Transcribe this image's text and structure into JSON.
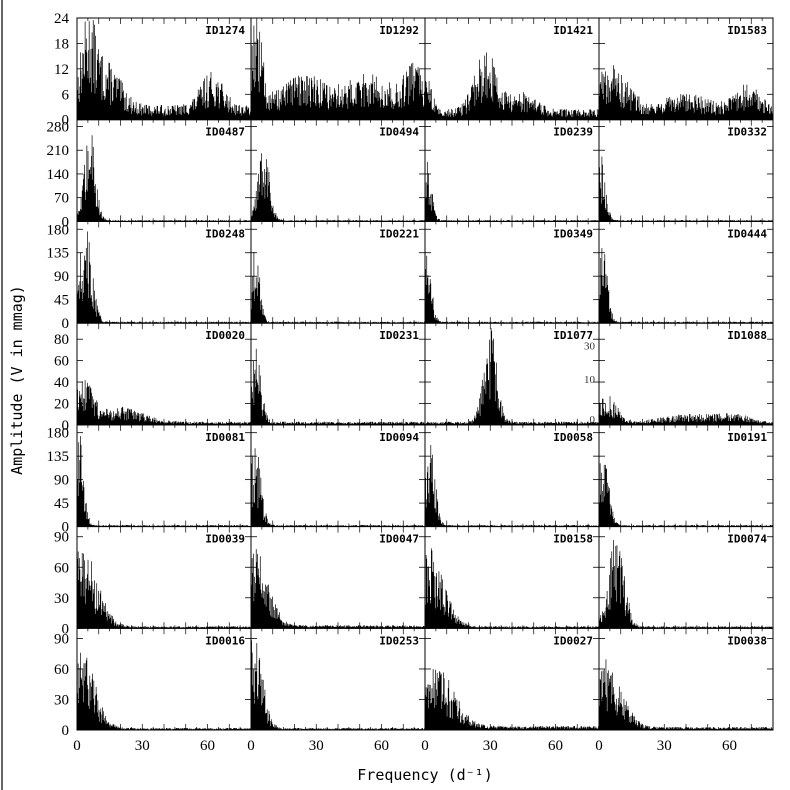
{
  "chart_data": {
    "type": "line",
    "xlabel": "Frequency (d⁻¹)",
    "ylabel": "Amplitude (V in mmag)",
    "xlim": [
      0,
      80
    ],
    "x_ticks": [
      0,
      30,
      60
    ],
    "rows": [
      {
        "y_ticks": [
          0,
          6,
          12,
          18,
          24
        ],
        "ylim": [
          0,
          24
        ]
      },
      {
        "y_ticks": [
          0,
          70,
          140,
          210,
          280
        ],
        "ylim": [
          0,
          300
        ]
      },
      {
        "y_ticks": [
          0,
          45,
          90,
          135,
          180
        ],
        "ylim": [
          0,
          195
        ]
      },
      {
        "y_ticks": [
          0,
          20,
          40,
          60,
          80
        ],
        "ylim": [
          0,
          95
        ]
      },
      {
        "y_ticks": [
          0,
          45,
          90,
          135,
          180
        ],
        "ylim": [
          0,
          195
        ]
      },
      {
        "y_ticks": [
          0,
          30,
          60,
          90
        ],
        "ylim": [
          0,
          100
        ]
      },
      {
        "y_ticks": [
          0,
          30,
          60,
          90
        ],
        "ylim": [
          0,
          100
        ]
      }
    ],
    "panels": [
      {
        "label": "ID1274",
        "row": 0,
        "col": 0,
        "peaks": [
          [
            5,
            19,
            3.5
          ],
          [
            14,
            10,
            6
          ],
          [
            62,
            8,
            5
          ]
        ],
        "base": 3.5
      },
      {
        "label": "ID1292",
        "row": 0,
        "col": 1,
        "peaks": [
          [
            2,
            21,
            3
          ],
          [
            25,
            7,
            10
          ],
          [
            55,
            7,
            10
          ],
          [
            75,
            9,
            4
          ]
        ],
        "base": 4
      },
      {
        "label": "ID1421",
        "row": 0,
        "col": 2,
        "peaks": [
          [
            1,
            10,
            2
          ],
          [
            28,
            14,
            5
          ],
          [
            45,
            4,
            6
          ]
        ],
        "base": 2.5
      },
      {
        "label": "ID1583",
        "row": 0,
        "col": 3,
        "peaks": [
          [
            5,
            11,
            8
          ],
          [
            40,
            4,
            10
          ],
          [
            68,
            6,
            6
          ]
        ],
        "base": 2.5
      },
      {
        "label": "ID0487",
        "row": 1,
        "col": 0,
        "peaks": [
          [
            6,
            280,
            2.5
          ]
        ],
        "base": 4
      },
      {
        "label": "ID0494",
        "row": 1,
        "col": 1,
        "peaks": [
          [
            6,
            250,
            2.5
          ]
        ],
        "base": 4
      },
      {
        "label": "ID0239",
        "row": 1,
        "col": 2,
        "peaks": [
          [
            1,
            190,
            2
          ]
        ],
        "base": 4
      },
      {
        "label": "ID0332",
        "row": 1,
        "col": 3,
        "peaks": [
          [
            1,
            200,
            2
          ]
        ],
        "base": 4
      },
      {
        "label": "ID0248",
        "row": 2,
        "col": 0,
        "peaks": [
          [
            5,
            160,
            2.5
          ],
          [
            1,
            80,
            2
          ]
        ],
        "base": 3
      },
      {
        "label": "ID0221",
        "row": 2,
        "col": 1,
        "peaks": [
          [
            2,
            145,
            2
          ]
        ],
        "base": 3
      },
      {
        "label": "ID0349",
        "row": 2,
        "col": 2,
        "peaks": [
          [
            1,
            150,
            2
          ]
        ],
        "base": 3
      },
      {
        "label": "ID0444",
        "row": 2,
        "col": 3,
        "peaks": [
          [
            2,
            150,
            2
          ]
        ],
        "base": 3
      },
      {
        "label": "ID0020",
        "row": 3,
        "col": 0,
        "peaks": [
          [
            3,
            40,
            4
          ],
          [
            20,
            14,
            10
          ]
        ],
        "base": 3
      },
      {
        "label": "ID0231",
        "row": 3,
        "col": 1,
        "peaks": [
          [
            2,
            70,
            2.5
          ]
        ],
        "base": 3
      },
      {
        "label": "ID1077",
        "row": 3,
        "col": 2,
        "peaks": [
          [
            30,
            92,
            3
          ]
        ],
        "base": 3
      },
      {
        "label": "ID1088",
        "row": 3,
        "col": 3,
        "peaks": [
          [
            3,
            28,
            5
          ],
          [
            40,
            8,
            12
          ],
          [
            62,
            8,
            8
          ]
        ],
        "base": 2
      },
      {
        "label": "ID0081",
        "row": 4,
        "col": 0,
        "peaks": [
          [
            1,
            190,
            2
          ]
        ],
        "base": 3
      },
      {
        "label": "ID0094",
        "row": 4,
        "col": 1,
        "peaks": [
          [
            2,
            155,
            2.5
          ]
        ],
        "base": 3
      },
      {
        "label": "ID0058",
        "row": 4,
        "col": 2,
        "peaks": [
          [
            2,
            170,
            2.5
          ]
        ],
        "base": 3
      },
      {
        "label": "ID0191",
        "row": 4,
        "col": 3,
        "peaks": [
          [
            2,
            145,
            2.5
          ]
        ],
        "base": 3
      },
      {
        "label": "ID0039",
        "row": 5,
        "col": 0,
        "peaks": [
          [
            2,
            80,
            7
          ]
        ],
        "base": 2
      },
      {
        "label": "ID0047",
        "row": 5,
        "col": 1,
        "peaks": [
          [
            2,
            75,
            6
          ]
        ],
        "base": 3
      },
      {
        "label": "ID0158",
        "row": 5,
        "col": 2,
        "peaks": [
          [
            1,
            80,
            7
          ]
        ],
        "base": 2
      },
      {
        "label": "ID0074",
        "row": 5,
        "col": 3,
        "peaks": [
          [
            8,
            95,
            3.5
          ]
        ],
        "base": 2
      },
      {
        "label": "ID0016",
        "row": 6,
        "col": 0,
        "peaks": [
          [
            2,
            80,
            6
          ]
        ],
        "base": 2
      },
      {
        "label": "ID0253",
        "row": 6,
        "col": 1,
        "peaks": [
          [
            1,
            95,
            4
          ]
        ],
        "base": 2
      },
      {
        "label": "ID0027",
        "row": 6,
        "col": 2,
        "peaks": [
          [
            5,
            60,
            8
          ]
        ],
        "base": 4
      },
      {
        "label": "ID0038",
        "row": 6,
        "col": 3,
        "peaks": [
          [
            3,
            70,
            7
          ]
        ],
        "base": 3
      }
    ],
    "inset_ticks_ID1088": [
      "30",
      "10",
      "0"
    ]
  }
}
